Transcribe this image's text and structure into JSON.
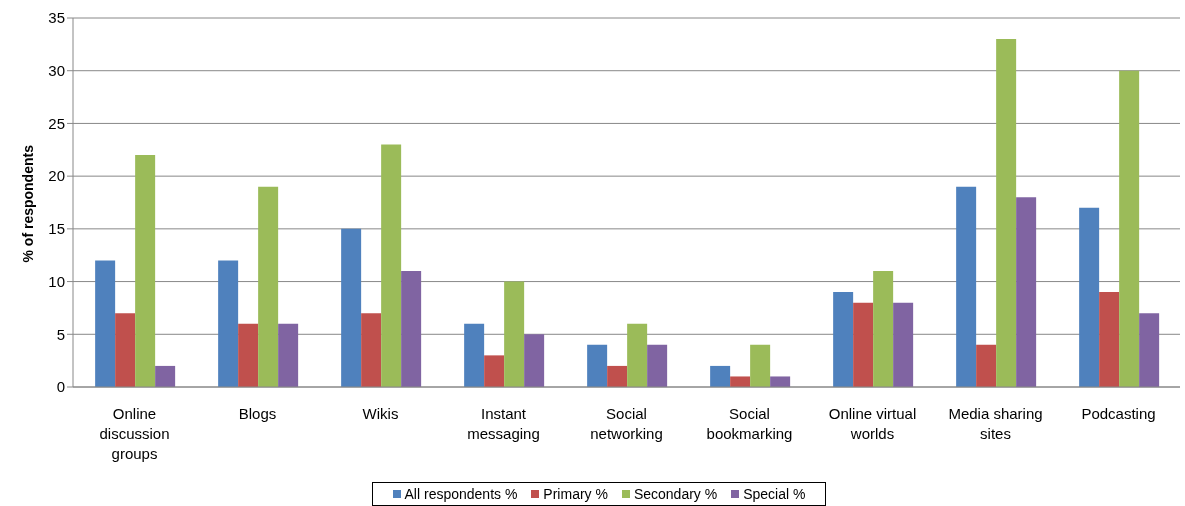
{
  "chart_data": {
    "type": "bar",
    "ylabel": "% of respondents",
    "categories": [
      "Online discussion groups",
      "Blogs",
      "Wikis",
      "Instant messaging",
      "Social networking",
      "Social bookmarking",
      "Online virtual worlds",
      "Media sharing sites",
      "Podcasting"
    ],
    "series": [
      {
        "name": "All respondents %",
        "color": "#4f81bd",
        "values": [
          12,
          12,
          15,
          6,
          4,
          2,
          9,
          19,
          17
        ]
      },
      {
        "name": "Primary %",
        "color": "#c0504d",
        "values": [
          7,
          6,
          7,
          3,
          2,
          1,
          8,
          4,
          9
        ]
      },
      {
        "name": "Secondary %",
        "color": "#9bbb59",
        "values": [
          22,
          19,
          23,
          10,
          6,
          4,
          11,
          33,
          30
        ]
      },
      {
        "name": "Special %",
        "color": "#8064a2",
        "values": [
          2,
          6,
          11,
          5,
          4,
          1,
          8,
          18,
          7
        ]
      }
    ],
    "ylim": [
      0,
      35
    ],
    "yticks": [
      0,
      5,
      10,
      15,
      20,
      25,
      30,
      35
    ],
    "grid": "y",
    "legend": "bottom"
  }
}
